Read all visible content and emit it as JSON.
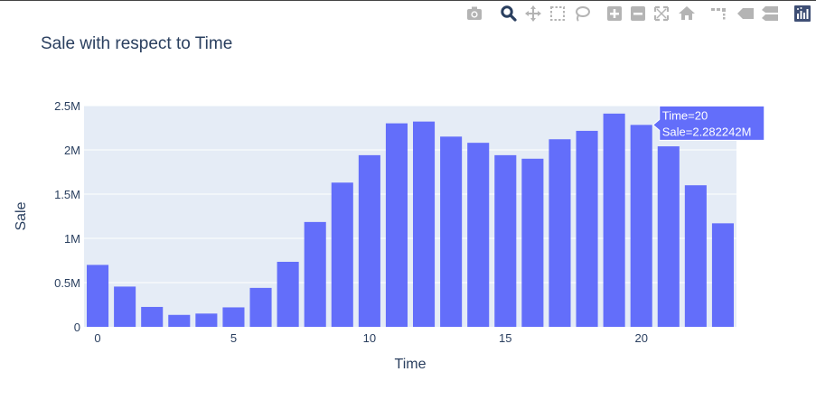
{
  "toolbar": {
    "icons": [
      "camera-icon",
      "zoom-icon",
      "pan-icon",
      "box-select-icon",
      "lasso-select-icon",
      "zoom-in-icon",
      "zoom-out-icon",
      "autoscale-icon",
      "reset-axes-icon",
      "spike-lines-icon",
      "hover-closest-icon",
      "hover-compare-icon",
      "plotly-logo-icon"
    ],
    "active_color": "#2a3f5f",
    "inactive_color": "#b4b4b4"
  },
  "chart_data": {
    "type": "bar",
    "title": "Sale with respect to Time",
    "xlabel": "Time",
    "ylabel": "Sale",
    "x": [
      0,
      1,
      2,
      3,
      4,
      5,
      6,
      7,
      8,
      9,
      10,
      11,
      12,
      13,
      14,
      15,
      16,
      17,
      18,
      19,
      20,
      21,
      22,
      23
    ],
    "values": [
      700000,
      455000,
      225000,
      135000,
      150000,
      220000,
      440000,
      735000,
      1185000,
      1630000,
      1940000,
      2300000,
      2320000,
      2150000,
      2080000,
      1940000,
      1900000,
      2120000,
      2215000,
      2410000,
      2282242,
      2040000,
      1600000,
      1170000
    ],
    "xlim": [
      -0.5,
      23.5
    ],
    "ylim": [
      0,
      2500000
    ],
    "x_ticks": [
      0,
      5,
      10,
      15,
      20
    ],
    "x_tick_labels": [
      "0",
      "5",
      "10",
      "15",
      "20"
    ],
    "y_ticks": [
      0,
      500000,
      1000000,
      1500000,
      2000000,
      2500000
    ],
    "y_tick_labels": [
      "0",
      "0.5M",
      "1M",
      "1.5M",
      "2M",
      "2.5M"
    ],
    "grid": true,
    "bar_color": "#636efa",
    "plot_bg": "#e5ecf6",
    "hover": {
      "index": 20,
      "line1": "Time=20",
      "line2": "Sale=2.282242M"
    }
  }
}
